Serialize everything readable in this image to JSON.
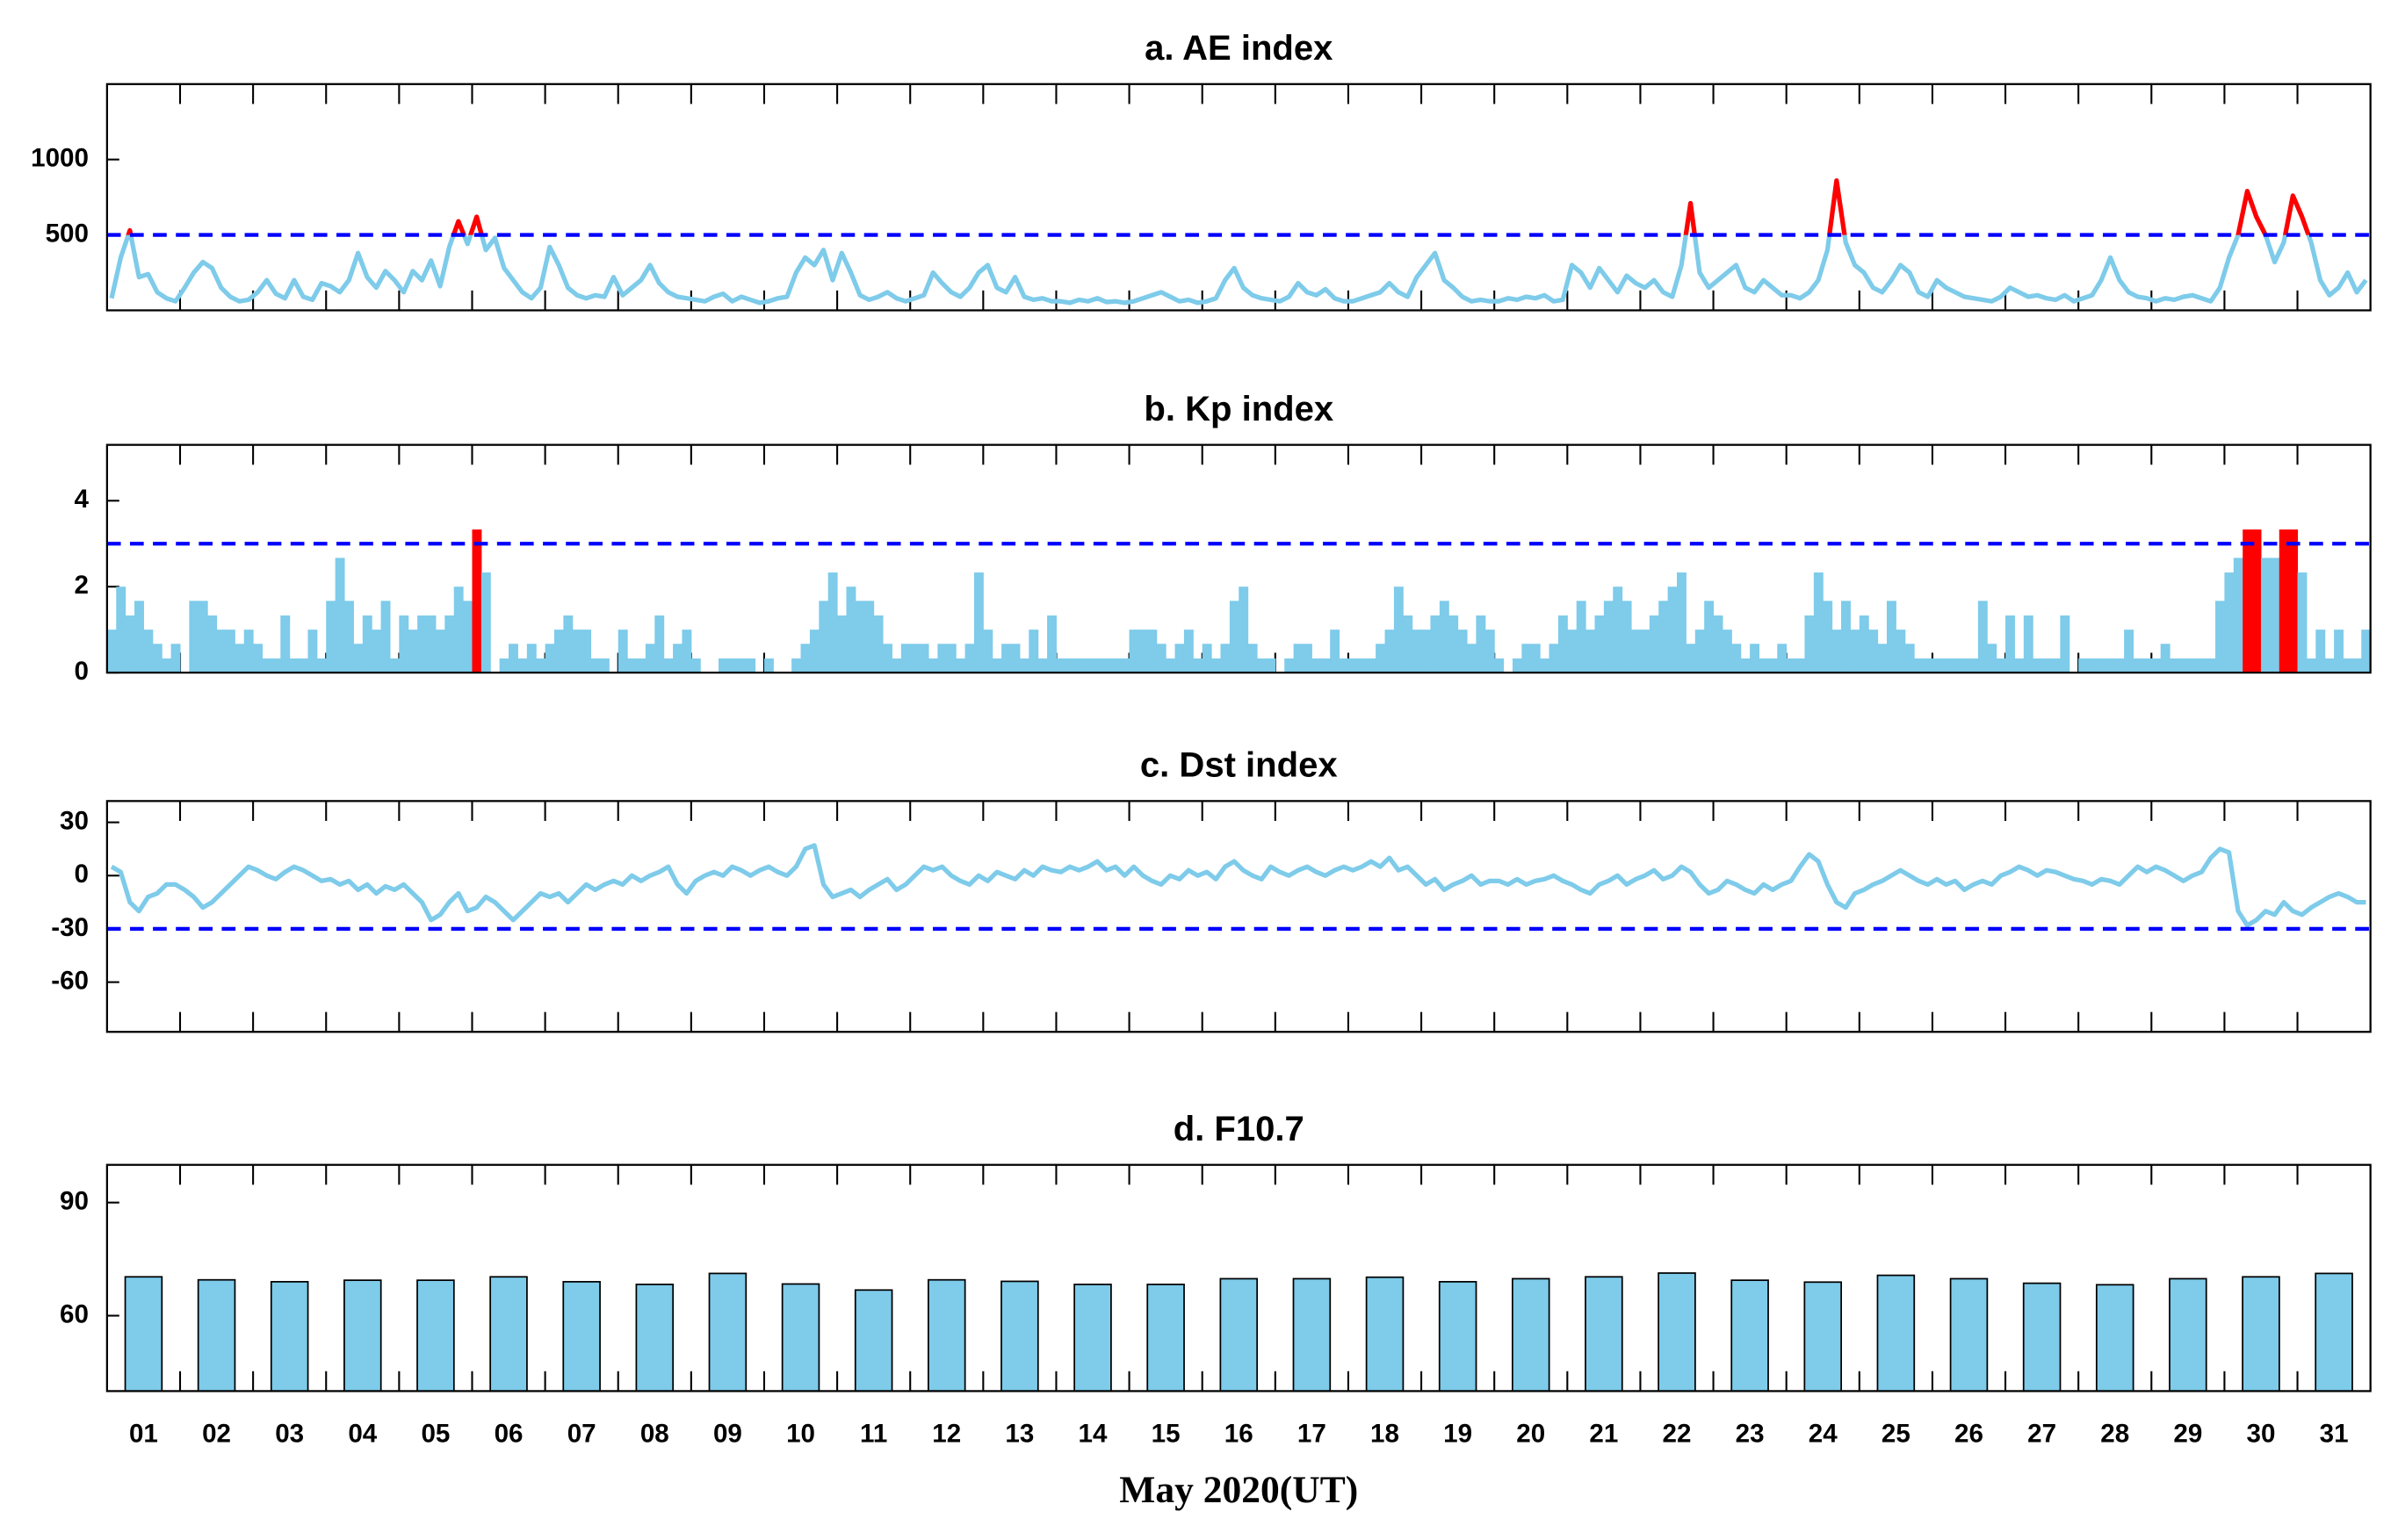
{
  "chart_data": [
    {
      "type": "line",
      "title": "a. AE index",
      "color": "#7ecbea",
      "highlight_color": "#ff0000",
      "threshold": 500,
      "threshold_color": "#0000ff",
      "ylim": [
        0,
        1500
      ],
      "yticks": [
        500,
        1000
      ],
      "values": [
        80,
        350,
        530,
        220,
        240,
        120,
        80,
        60,
        150,
        250,
        320,
        280,
        150,
        90,
        60,
        70,
        120,
        200,
        110,
        80,
        200,
        90,
        70,
        180,
        160,
        120,
        200,
        380,
        220,
        150,
        260,
        200,
        120,
        260,
        200,
        330,
        160,
        420,
        590,
        440,
        620,
        400,
        480,
        280,
        200,
        120,
        80,
        150,
        420,
        300,
        150,
        100,
        80,
        100,
        90,
        220,
        100,
        150,
        200,
        300,
        180,
        120,
        90,
        80,
        70,
        60,
        90,
        110,
        60,
        90,
        70,
        50,
        60,
        80,
        90,
        250,
        350,
        300,
        400,
        200,
        380,
        250,
        100,
        70,
        90,
        120,
        80,
        60,
        80,
        100,
        250,
        180,
        120,
        90,
        150,
        250,
        300,
        150,
        120,
        220,
        90,
        70,
        80,
        60,
        60,
        50,
        70,
        60,
        80,
        55,
        60,
        50,
        60,
        80,
        100,
        120,
        90,
        60,
        70,
        50,
        60,
        80,
        200,
        280,
        150,
        100,
        80,
        70,
        60,
        90,
        180,
        120,
        100,
        140,
        80,
        60,
        60,
        80,
        100,
        120,
        180,
        120,
        90,
        220,
        300,
        380,
        200,
        150,
        90,
        60,
        70,
        60,
        60,
        80,
        70,
        90,
        80,
        100,
        60,
        70,
        300,
        250,
        150,
        280,
        200,
        120,
        230,
        180,
        150,
        200,
        120,
        90,
        300,
        710,
        250,
        150,
        200,
        250,
        300,
        150,
        120,
        200,
        150,
        100,
        100,
        80,
        120,
        200,
        400,
        860,
        450,
        300,
        250,
        150,
        120,
        200,
        300,
        250,
        120,
        90,
        200,
        150,
        120,
        90,
        80,
        70,
        60,
        90,
        150,
        120,
        90,
        100,
        80,
        70,
        100,
        60,
        80,
        100,
        200,
        350,
        200,
        120,
        90,
        80,
        60,
        80,
        70,
        90,
        100,
        80,
        60,
        150,
        350,
        500,
        790,
        620,
        500,
        320,
        450,
        760,
        620,
        450,
        200,
        100,
        150,
        250,
        120,
        200
      ]
    },
    {
      "type": "bar",
      "title": "b. Kp index",
      "color": "#7ecbea",
      "highlight_color": "#ff0000",
      "threshold": 3,
      "threshold_color": "#0000ff",
      "ylim": [
        0,
        5.3
      ],
      "yticks": [
        0,
        2,
        4
      ],
      "values": [
        1,
        2,
        1.33,
        1.67,
        1,
        0.67,
        0.33,
        0.67,
        0,
        1.67,
        1.67,
        1.33,
        1,
        1,
        0.67,
        1,
        0.67,
        0.33,
        0.33,
        1.33,
        0.33,
        0.33,
        1,
        0.33,
        1.67,
        2.67,
        1.67,
        0.67,
        1.33,
        1,
        1.67,
        0.33,
        1.33,
        1,
        1.33,
        1.33,
        1,
        1.33,
        2,
        1.67,
        3.33,
        2.33,
        0,
        0.33,
        0.67,
        0.33,
        0.67,
        0.33,
        0.67,
        1,
        1.33,
        1,
        1,
        0.33,
        0.33,
        0,
        1,
        0.33,
        0.33,
        0.67,
        1.33,
        0.33,
        0.67,
        1,
        0.33,
        0,
        0,
        0.33,
        0.33,
        0.33,
        0.33,
        0,
        0.33,
        0,
        0,
        0.33,
        0.67,
        1,
        1.67,
        2.33,
        1.33,
        2,
        1.67,
        1.67,
        1.33,
        0.67,
        0.33,
        0.67,
        0.67,
        0.67,
        0.33,
        0.67,
        0.67,
        0.33,
        0.67,
        2.33,
        1,
        0.33,
        0.67,
        0.67,
        0.33,
        1,
        0.33,
        1.33,
        0.33,
        0.33,
        0.33,
        0.33,
        0.33,
        0.33,
        0.33,
        0.33,
        1,
        1,
        1,
        0.67,
        0.33,
        0.67,
        1,
        0.33,
        0.67,
        0.33,
        0.67,
        1.67,
        2,
        0.67,
        0.33,
        0.33,
        0,
        0.33,
        0.67,
        0.67,
        0.33,
        0.33,
        1,
        0.33,
        0.33,
        0.33,
        0.33,
        0.67,
        1,
        2,
        1.33,
        1,
        1,
        1.33,
        1.67,
        1.33,
        1,
        0.67,
        1.33,
        1,
        0.33,
        0,
        0.33,
        0.67,
        0.67,
        0.33,
        0.67,
        1.33,
        1,
        1.67,
        1,
        1.33,
        1.67,
        2,
        1.67,
        1,
        1,
        1.33,
        1.67,
        2,
        2.33,
        0.67,
        1,
        1.67,
        1.33,
        1,
        0.67,
        0.33,
        0.67,
        0.33,
        0.33,
        0.67,
        0.33,
        0.33,
        1.33,
        2.33,
        1.67,
        1,
        1.67,
        1,
        1.33,
        1,
        0.67,
        1.67,
        1,
        0.67,
        0.33,
        0.33,
        0.33,
        0.33,
        0.33,
        0.33,
        0.33,
        1.67,
        0.67,
        0.33,
        1.33,
        0.33,
        1.33,
        0.33,
        0.33,
        0.33,
        1.33,
        0,
        0.33,
        0.33,
        0.33,
        0.33,
        0.33,
        1,
        0.33,
        0.33,
        0.33,
        0.67,
        0.33,
        0.33,
        0.33,
        0.33,
        0.33,
        1.67,
        2.33,
        2.67,
        3.33,
        3.33,
        2.67,
        2.67,
        3.33,
        3.33,
        2.33,
        0.33,
        1,
        0.33,
        1,
        0.33,
        0.33,
        1
      ]
    },
    {
      "type": "line",
      "title": "c. Dst index",
      "color": "#7ecbea",
      "threshold": -30,
      "threshold_color": "#0000ff",
      "ylim": [
        -88,
        42
      ],
      "yticks": [
        30,
        0,
        -30,
        -60
      ],
      "values": [
        5,
        2,
        -15,
        -20,
        -12,
        -10,
        -5,
        -5,
        -8,
        -12,
        -18,
        -15,
        -10,
        -5,
        0,
        5,
        3,
        0,
        -2,
        2,
        5,
        3,
        0,
        -3,
        -2,
        -5,
        -3,
        -8,
        -5,
        -10,
        -6,
        -8,
        -5,
        -10,
        -15,
        -25,
        -22,
        -15,
        -10,
        -20,
        -18,
        -12,
        -15,
        -20,
        -25,
        -20,
        -15,
        -10,
        -12,
        -10,
        -15,
        -10,
        -5,
        -8,
        -5,
        -3,
        -5,
        0,
        -3,
        0,
        2,
        5,
        -5,
        -10,
        -3,
        0,
        2,
        0,
        5,
        3,
        0,
        3,
        5,
        2,
        0,
        5,
        15,
        17,
        -5,
        -12,
        -10,
        -8,
        -12,
        -8,
        -5,
        -2,
        -8,
        -5,
        0,
        5,
        3,
        5,
        0,
        -3,
        -5,
        0,
        -3,
        2,
        0,
        -2,
        3,
        0,
        5,
        3,
        2,
        5,
        3,
        5,
        8,
        3,
        5,
        0,
        5,
        0,
        -3,
        -5,
        0,
        -2,
        3,
        0,
        2,
        -2,
        5,
        8,
        3,
        0,
        -2,
        5,
        2,
        0,
        3,
        5,
        2,
        0,
        3,
        5,
        3,
        5,
        8,
        5,
        10,
        3,
        5,
        0,
        -5,
        -2,
        -8,
        -5,
        -3,
        0,
        -5,
        -3,
        -3,
        -5,
        -2,
        -5,
        -3,
        -2,
        0,
        -3,
        -5,
        -8,
        -10,
        -5,
        -3,
        0,
        -5,
        -2,
        0,
        3,
        -2,
        0,
        5,
        2,
        -5,
        -10,
        -8,
        -3,
        -5,
        -8,
        -10,
        -5,
        -8,
        -5,
        -3,
        5,
        12,
        8,
        -5,
        -15,
        -18,
        -10,
        -8,
        -5,
        -3,
        0,
        3,
        0,
        -3,
        -5,
        -2,
        -5,
        -3,
        -8,
        -5,
        -3,
        -5,
        0,
        2,
        5,
        3,
        0,
        3,
        2,
        0,
        -2,
        -3,
        -5,
        -2,
        -3,
        -5,
        0,
        5,
        2,
        5,
        3,
        0,
        -3,
        0,
        2,
        10,
        15,
        13,
        -20,
        -28,
        -25,
        -20,
        -22,
        -15,
        -20,
        -22,
        -18,
        -15,
        -12,
        -10,
        -12,
        -15,
        -15
      ]
    },
    {
      "type": "bar",
      "title": "d. F10.7",
      "color": "#7ecbea",
      "edge_color": "#000000",
      "xlabel": "May 2020(UT)",
      "ylim": [
        40,
        100
      ],
      "yticks": [
        60,
        90
      ],
      "categories": [
        "01",
        "02",
        "03",
        "04",
        "05",
        "06",
        "07",
        "08",
        "09",
        "10",
        "11",
        "12",
        "13",
        "14",
        "15",
        "16",
        "17",
        "18",
        "19",
        "20",
        "21",
        "22",
        "23",
        "24",
        "25",
        "26",
        "27",
        "28",
        "29",
        "30",
        "31"
      ],
      "values": [
        70.3,
        69.5,
        69.0,
        69.4,
        69.4,
        70.3,
        69.0,
        68.3,
        71.2,
        68.4,
        66.8,
        69.5,
        69.1,
        68.3,
        68.3,
        69.8,
        69.8,
        70.2,
        69.0,
        69.8,
        70.3,
        71.3,
        69.4,
        68.9,
        70.7,
        69.8,
        68.6,
        68.2,
        69.8,
        70.3,
        71.2
      ]
    }
  ]
}
